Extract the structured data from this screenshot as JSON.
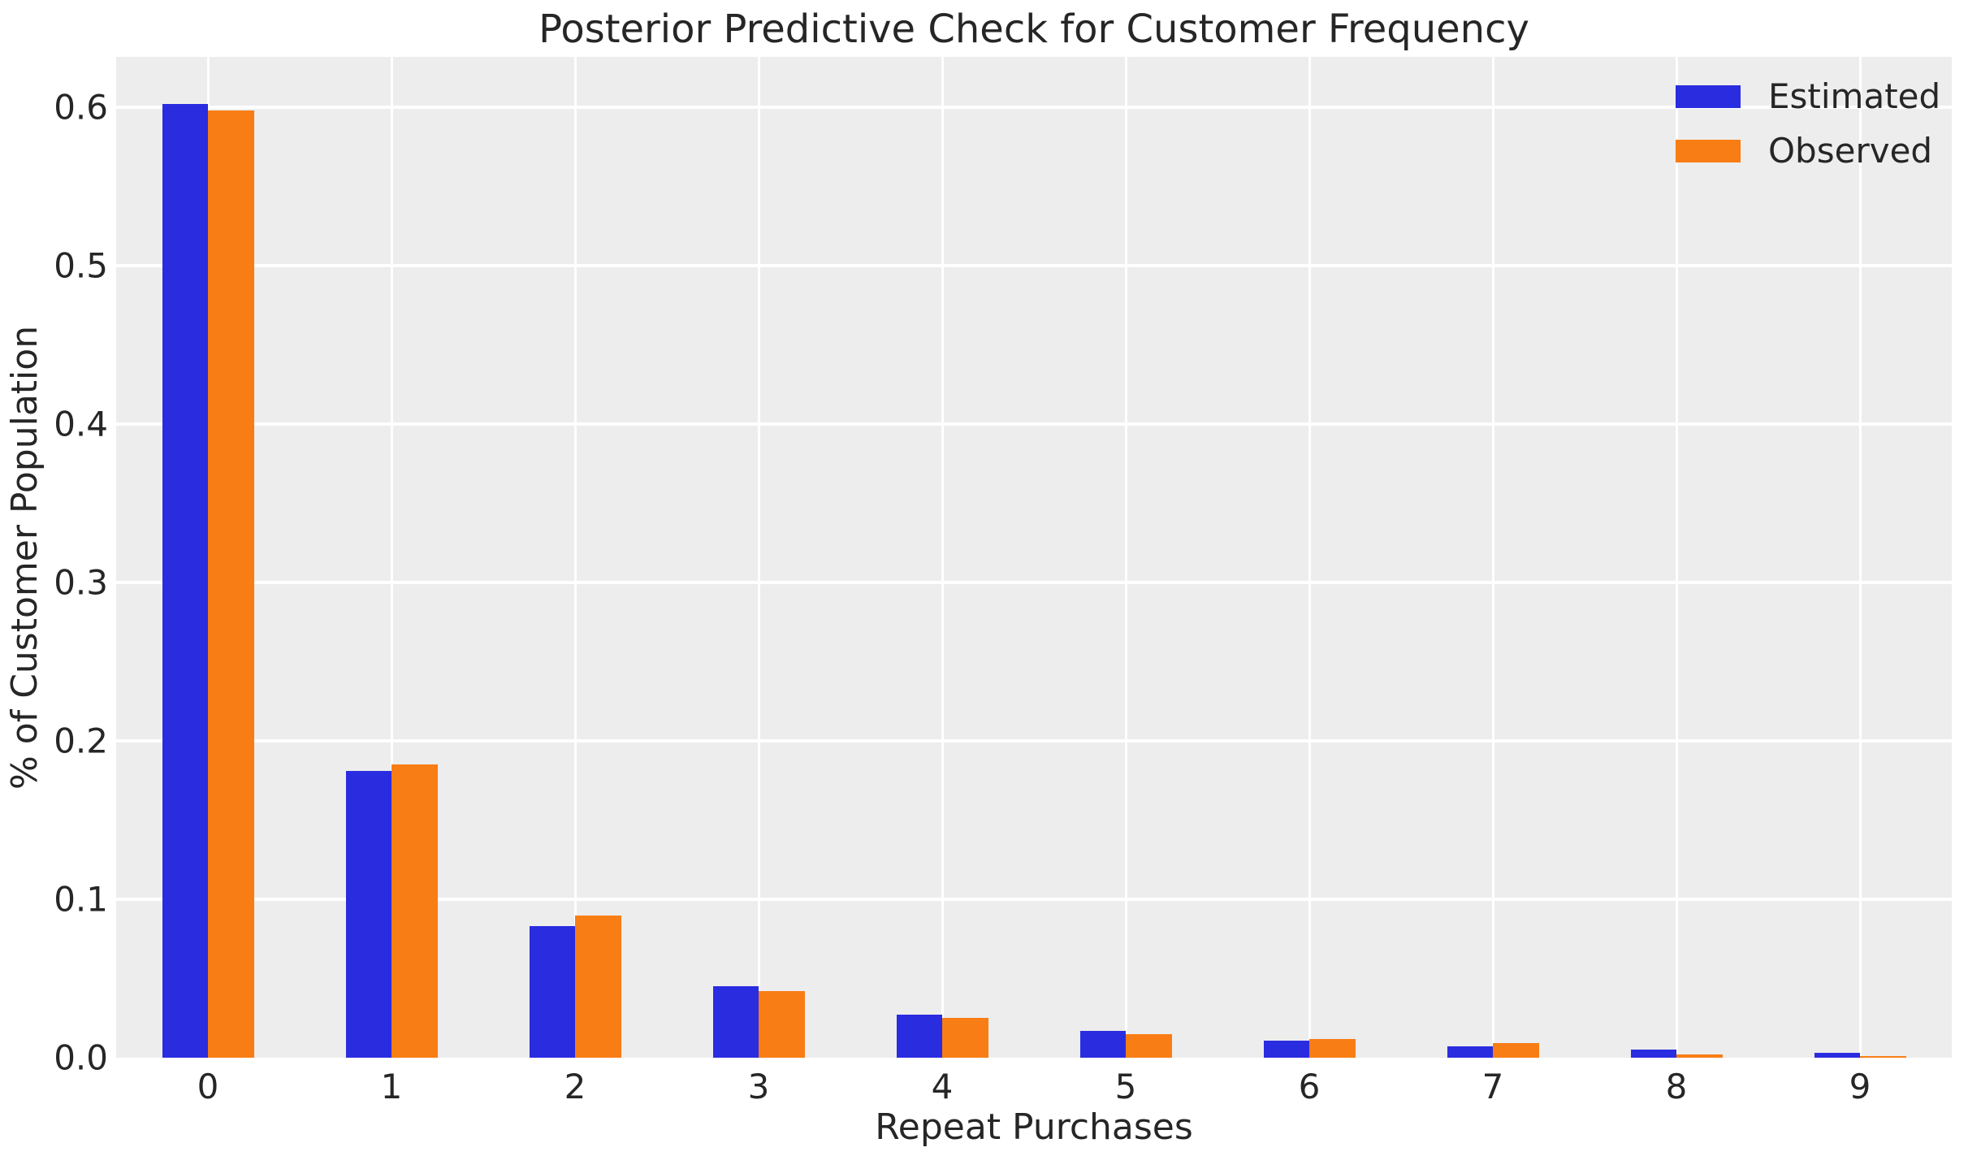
{
  "chart_data": {
    "type": "bar",
    "title": "Posterior Predictive Check for Customer Frequency",
    "xlabel": "Repeat Purchases",
    "ylabel": "% of Customer Population",
    "categories": [
      "0",
      "1",
      "2",
      "3",
      "4",
      "5",
      "6",
      "7",
      "8",
      "9"
    ],
    "series": [
      {
        "name": "Estimated",
        "color": "#2a2ce0",
        "values": [
          0.602,
          0.181,
          0.083,
          0.045,
          0.027,
          0.017,
          0.011,
          0.007,
          0.005,
          0.003
        ]
      },
      {
        "name": "Observed",
        "color": "#f87d14",
        "values": [
          0.598,
          0.185,
          0.09,
          0.042,
          0.025,
          0.015,
          0.012,
          0.009,
          0.002,
          0.001
        ]
      }
    ],
    "ylim": [
      0,
      0.632
    ],
    "yticks": [
      "0.0",
      "0.1",
      "0.2",
      "0.3",
      "0.4",
      "0.5",
      "0.6"
    ],
    "grid": true,
    "legend_position": "upper right",
    "plot_bg_color": "#ededed",
    "grid_color": "#ffffff",
    "text_color": "#262626"
  }
}
